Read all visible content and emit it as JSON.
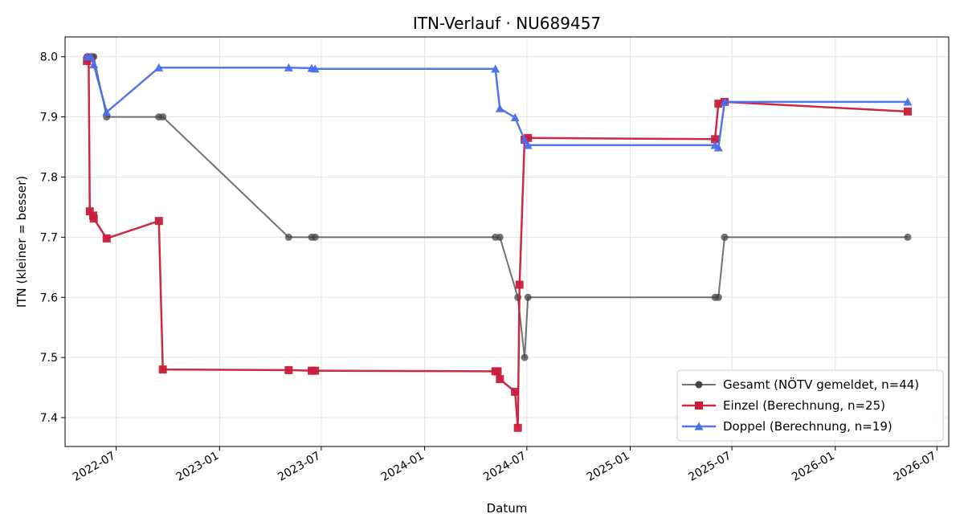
{
  "chart_data": {
    "type": "line",
    "title": "ITN-Verlauf · NU689457",
    "xlabel": "Datum",
    "ylabel": "ITN  (kleiner = besser)",
    "x_type": "date",
    "xlim": [
      "2022-04-01",
      "2026-07-22"
    ],
    "ylim": [
      7.352,
      8.033
    ],
    "x_ticks": [
      "2022-07-01",
      "2023-01-01",
      "2023-07-01",
      "2024-01-01",
      "2024-07-01",
      "2025-01-01",
      "2025-07-01",
      "2026-01-01",
      "2026-07-01"
    ],
    "x_tick_labels": [
      "2022-07",
      "2023-01",
      "2023-07",
      "2024-01",
      "2024-07",
      "2025-01",
      "2025-07",
      "2026-01",
      "2026-07"
    ],
    "y_ticks": [
      7.4,
      7.5,
      7.6,
      7.7,
      7.8,
      7.9,
      8.0
    ],
    "y_tick_labels": [
      "7.4",
      "7.5",
      "7.6",
      "7.7",
      "7.8",
      "7.9",
      "8.0"
    ],
    "grid": true,
    "legend_position": "lower-right",
    "series": [
      {
        "name": "Gesamt (NÖTV gemeldet, n=44)",
        "color": "#444444",
        "marker": "circle",
        "points": [
          {
            "x": "2022-05-10",
            "y": 8.0
          },
          {
            "x": "2022-05-13",
            "y": 8.0
          },
          {
            "x": "2022-05-20",
            "y": 8.0
          },
          {
            "x": "2022-05-22",
            "y": 8.0
          },
          {
            "x": "2022-06-14",
            "y": 7.9
          },
          {
            "x": "2022-09-15",
            "y": 7.9
          },
          {
            "x": "2022-09-22",
            "y": 7.9
          },
          {
            "x": "2023-05-04",
            "y": 7.7
          },
          {
            "x": "2023-06-14",
            "y": 7.7
          },
          {
            "x": "2023-06-20",
            "y": 7.7
          },
          {
            "x": "2024-05-06",
            "y": 7.7
          },
          {
            "x": "2024-05-14",
            "y": 7.7
          },
          {
            "x": "2024-06-15",
            "y": 7.6
          },
          {
            "x": "2024-06-27",
            "y": 7.5
          },
          {
            "x": "2024-07-03",
            "y": 7.6
          },
          {
            "x": "2025-06-01",
            "y": 7.6
          },
          {
            "x": "2025-06-07",
            "y": 7.6
          },
          {
            "x": "2025-06-18",
            "y": 7.7
          },
          {
            "x": "2026-05-10",
            "y": 7.7
          }
        ]
      },
      {
        "name": "Einzel (Berechnung, n=25)",
        "color": "#c81d3a",
        "marker": "square",
        "points": [
          {
            "x": "2022-05-10",
            "y": 7.993
          },
          {
            "x": "2022-05-13",
            "y": 7.998
          },
          {
            "x": "2022-05-15",
            "y": 7.743
          },
          {
            "x": "2022-05-21",
            "y": 7.736
          },
          {
            "x": "2022-05-22",
            "y": 7.731
          },
          {
            "x": "2022-06-14",
            "y": 7.698
          },
          {
            "x": "2022-09-15",
            "y": 7.727
          },
          {
            "x": "2022-09-22",
            "y": 7.48
          },
          {
            "x": "2023-05-04",
            "y": 7.479
          },
          {
            "x": "2023-06-14",
            "y": 7.478
          },
          {
            "x": "2023-06-20",
            "y": 7.478
          },
          {
            "x": "2024-05-06",
            "y": 7.477
          },
          {
            "x": "2024-05-10",
            "y": 7.477
          },
          {
            "x": "2024-05-14",
            "y": 7.464
          },
          {
            "x": "2024-06-10",
            "y": 7.443
          },
          {
            "x": "2024-06-15",
            "y": 7.383
          },
          {
            "x": "2024-06-18",
            "y": 7.621
          },
          {
            "x": "2024-06-27",
            "y": 7.862
          },
          {
            "x": "2024-07-03",
            "y": 7.865
          },
          {
            "x": "2025-06-01",
            "y": 7.863
          },
          {
            "x": "2025-06-07",
            "y": 7.922
          },
          {
            "x": "2025-06-18",
            "y": 7.925
          },
          {
            "x": "2026-05-10",
            "y": 7.909
          }
        ]
      },
      {
        "name": "Doppel (Berechnung, n=19)",
        "color": "#4a6fe8",
        "marker": "triangle",
        "points": [
          {
            "x": "2022-05-10",
            "y": 8.0
          },
          {
            "x": "2022-05-17",
            "y": 8.0
          },
          {
            "x": "2022-05-22",
            "y": 7.987
          },
          {
            "x": "2022-06-14",
            "y": 7.908
          },
          {
            "x": "2022-09-15",
            "y": 7.982
          },
          {
            "x": "2023-05-04",
            "y": 7.982
          },
          {
            "x": "2023-06-14",
            "y": 7.981
          },
          {
            "x": "2023-06-20",
            "y": 7.98
          },
          {
            "x": "2024-05-06",
            "y": 7.98
          },
          {
            "x": "2024-05-14",
            "y": 7.914
          },
          {
            "x": "2024-06-10",
            "y": 7.899
          },
          {
            "x": "2024-06-27",
            "y": 7.862
          },
          {
            "x": "2024-07-03",
            "y": 7.853
          },
          {
            "x": "2025-06-01",
            "y": 7.853
          },
          {
            "x": "2025-06-07",
            "y": 7.849
          },
          {
            "x": "2025-06-18",
            "y": 7.925
          },
          {
            "x": "2026-05-10",
            "y": 7.925
          }
        ]
      }
    ]
  }
}
